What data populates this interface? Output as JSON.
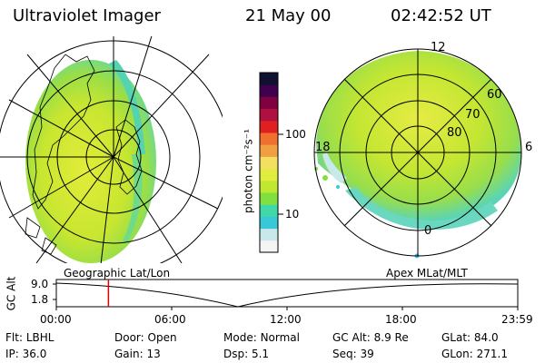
{
  "header": {
    "instrument": "Ultraviolet Imager",
    "date": "21 May 00",
    "time": "02:42:52 UT"
  },
  "geo_panel": {
    "label": "Geographic Lat/Lon"
  },
  "mag_panel": {
    "label": "Apex MLat/MLT",
    "lat_labels": [
      "80",
      "70",
      "60"
    ],
    "mlt_labels": [
      "12",
      "18",
      "6",
      "0"
    ]
  },
  "colorbar": {
    "unit_label": "photon cm⁻²s⁻¹",
    "ticks": [
      "100",
      "10"
    ],
    "colors": [
      "#f4f4f4",
      "#c8e8ec",
      "#38c8d8",
      "#40d8a8",
      "#80e040",
      "#c0e830",
      "#e0ec40",
      "#f4e060",
      "#f0a040",
      "#f07030",
      "#e02020",
      "#b01040",
      "#800040",
      "#400050",
      "#101030"
    ]
  },
  "altitude_plot": {
    "ylabel": "GC Alt",
    "y_ticks": [
      "9.0",
      "1.8"
    ],
    "x_ticks": [
      "00:00",
      "06:00",
      "12:00",
      "18:00",
      "23:59"
    ],
    "current_time_hours": 2.71,
    "marker_color": "#e00000"
  },
  "info": {
    "row1": [
      {
        "label": "Flt:",
        "value": "LBHL"
      },
      {
        "label": "Door:",
        "value": "Open"
      },
      {
        "label": "Mode:",
        "value": "Normal"
      },
      {
        "label": "GC Alt:",
        "value": "8.9 Re"
      },
      {
        "label": "GLat:",
        "value": "84.0"
      }
    ],
    "row2": [
      {
        "label": "IP:",
        "value": "36.0"
      },
      {
        "label": "Gain:",
        "value": "13"
      },
      {
        "label": "Dsp:",
        "value": "5.1"
      },
      {
        "label": "Seq:",
        "value": "39"
      },
      {
        "label": "GLon:",
        "value": "271.1"
      }
    ]
  }
}
